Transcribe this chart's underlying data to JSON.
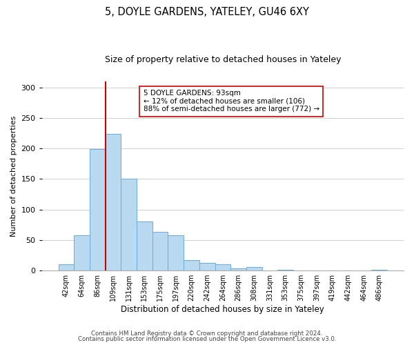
{
  "title": "5, DOYLE GARDENS, YATELEY, GU46 6XY",
  "subtitle": "Size of property relative to detached houses in Yateley",
  "xlabel": "Distribution of detached houses by size in Yateley",
  "ylabel": "Number of detached properties",
  "bin_labels": [
    "42sqm",
    "64sqm",
    "86sqm",
    "109sqm",
    "131sqm",
    "153sqm",
    "175sqm",
    "197sqm",
    "220sqm",
    "242sqm",
    "264sqm",
    "286sqm",
    "308sqm",
    "331sqm",
    "353sqm",
    "375sqm",
    "397sqm",
    "419sqm",
    "442sqm",
    "464sqm",
    "486sqm"
  ],
  "bar_heights": [
    10,
    58,
    199,
    224,
    150,
    80,
    63,
    58,
    17,
    13,
    10,
    4,
    6,
    0,
    1,
    0,
    0,
    0,
    0,
    0,
    1
  ],
  "bar_color": "#b8d9f0",
  "bar_edge_color": "#6aabe0",
  "vline_color": "#cc0000",
  "vline_x_index": 2.5,
  "annotation_text": "5 DOYLE GARDENS: 93sqm\n← 12% of detached houses are smaller (106)\n88% of semi-detached houses are larger (772) →",
  "annotation_box_color": "#ffffff",
  "annotation_box_edge": "#cc0000",
  "ylim": [
    0,
    310
  ],
  "yticks": [
    0,
    50,
    100,
    150,
    200,
    250,
    300
  ],
  "footer1": "Contains HM Land Registry data © Crown copyright and database right 2024.",
  "footer2": "Contains public sector information licensed under the Open Government Licence v3.0.",
  "bg_color": "#ffffff",
  "grid_color": "#d0d0d0"
}
